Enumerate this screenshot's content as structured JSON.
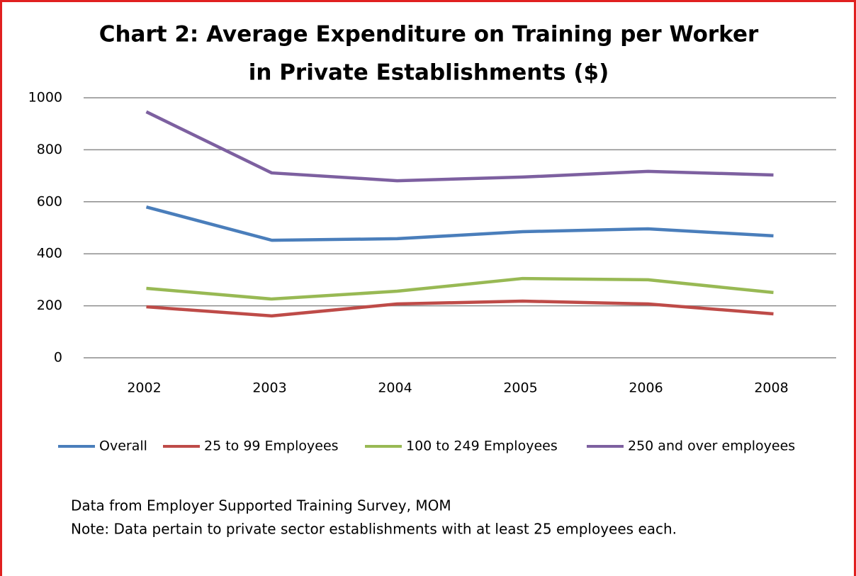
{
  "chart_data": {
    "type": "line",
    "title": [
      "Chart 2: Average Expenditure on Training per Worker",
      "in Private Establishments  ($)"
    ],
    "categories": [
      "2002",
      "2003",
      "2004",
      "2005",
      "2006",
      "2008"
    ],
    "series": [
      {
        "name": "Overall",
        "color": "#4a7ebb",
        "values": [
          580,
          452,
          458,
          485,
          496,
          469
        ]
      },
      {
        "name": "25 to 99 Employees",
        "color": "#be4b48",
        "values": [
          196,
          161,
          207,
          218,
          207,
          169
        ]
      },
      {
        "name": "100 to 249 Employees",
        "color": "#98b954",
        "values": [
          267,
          226,
          256,
          305,
          300,
          251
        ]
      },
      {
        "name": "250 and over employees",
        "color": "#7d60a0",
        "values": [
          946,
          711,
          681,
          695,
          717,
          703
        ]
      }
    ],
    "ylim": [
      0,
      1000
    ],
    "yticks": [
      0,
      200,
      400,
      600,
      800,
      1000
    ],
    "grid": true,
    "legend": "bottom",
    "notes": [
      "Data from Employer Supported Training Survey, MOM",
      "Note: Data pertain to private sector establishments with at least 25 employees each."
    ]
  }
}
